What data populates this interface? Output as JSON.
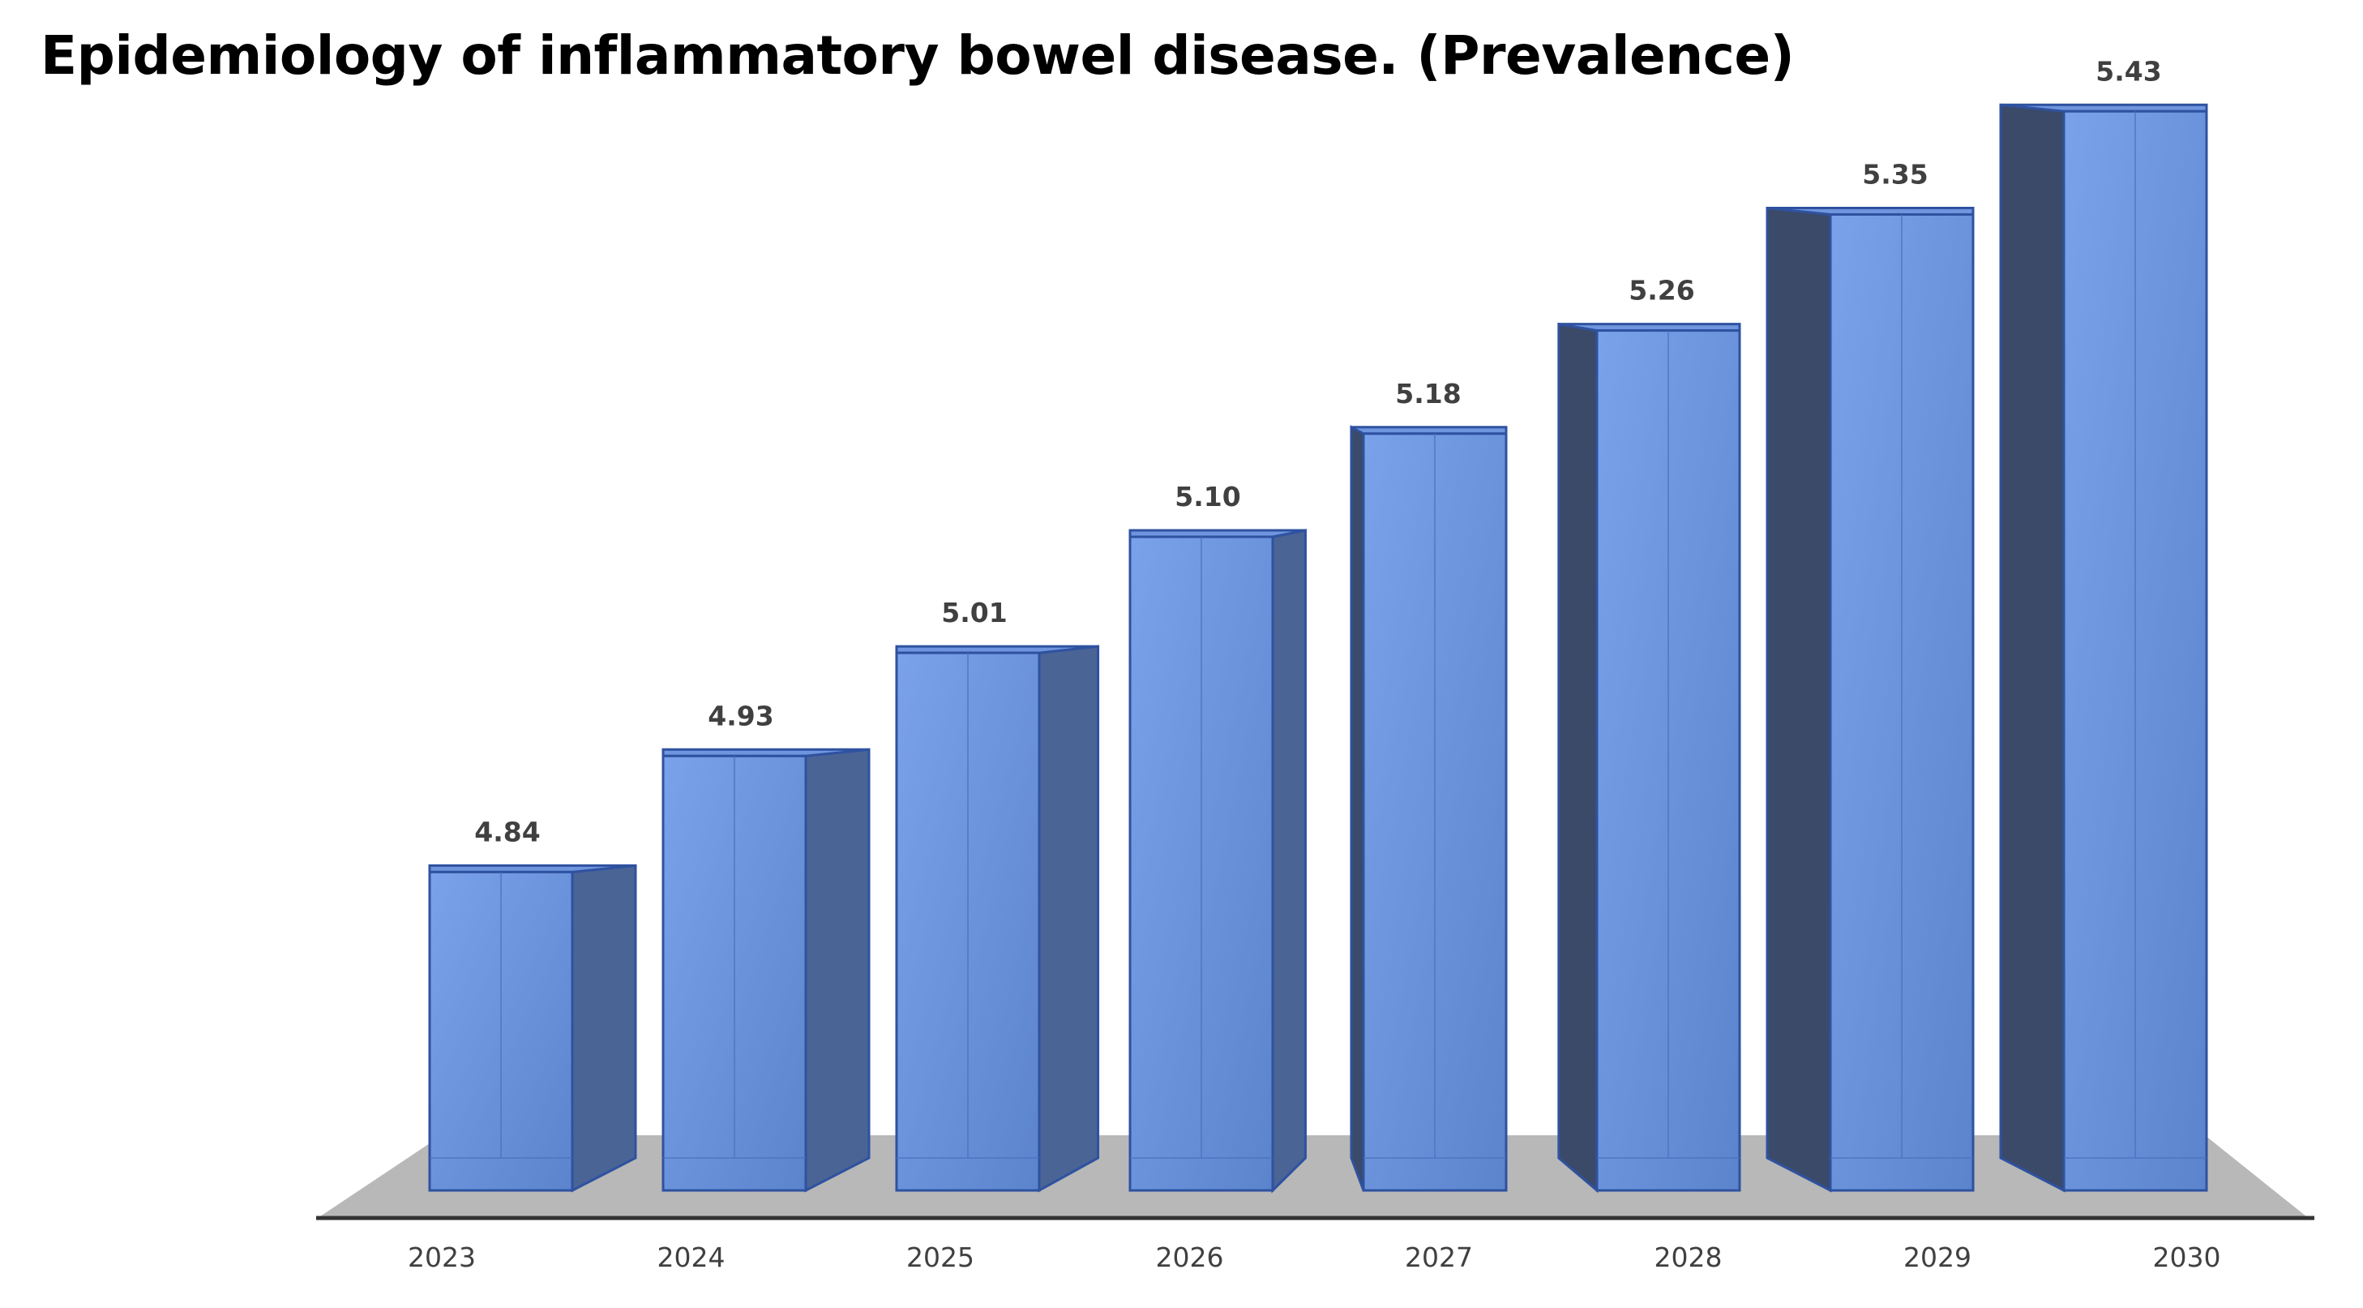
{
  "chart_data": {
    "type": "bar",
    "title": "Epidemiology of inflammatory bowel disease. (Prevalence)",
    "categories": [
      "2023",
      "2024",
      "2025",
      "2026",
      "2027",
      "2028",
      "2029",
      "2030"
    ],
    "series": [
      {
        "values": [
          4.84,
          4.93,
          5.01,
          5.1,
          5.18,
          5.26,
          5.35,
          5.43
        ],
        "labels": [
          "4.84",
          "4.93",
          "5.01",
          "5.10",
          "5.18",
          "5.26",
          "5.35",
          "5.43"
        ]
      }
    ],
    "grid": false,
    "legend": "none",
    "style": "3d-column",
    "colors": {
      "bar_front": "#5f87cd",
      "bar_edge": "#2f52a0",
      "bar_side_light": "#4a6496",
      "bar_side_dark": "#3a4a68",
      "floor": "#b8b8b8",
      "axis": "#333333"
    }
  }
}
